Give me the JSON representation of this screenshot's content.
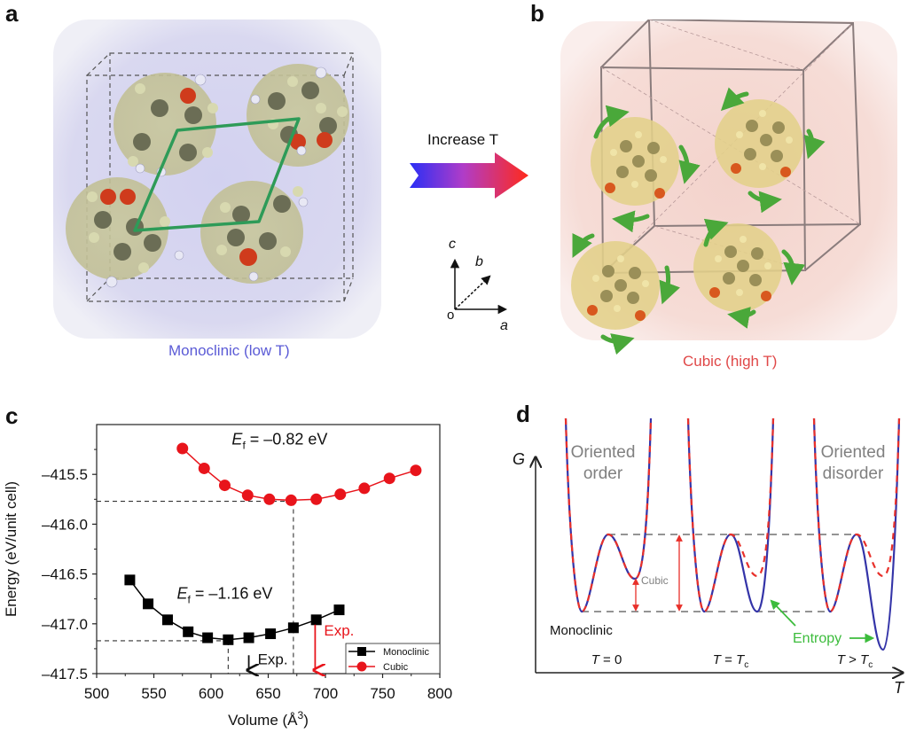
{
  "figure": {
    "panel_labels": {
      "a": "a",
      "b": "b",
      "c": "c",
      "d": "d"
    },
    "panel_a": {
      "caption": "Monoclinic (low T)",
      "caption_color": "#5b5bd6",
      "background_color": "#d9d8f0"
    },
    "panel_b": {
      "caption": "Cubic (high T)",
      "caption_color": "#e04848",
      "background_color": "#f6dcd6"
    },
    "transition_arrow": {
      "label": "Increase T",
      "gradient_start": "#2a2ff5",
      "gradient_end": "#ff2a1a"
    },
    "axes_triad": {
      "origin": "o",
      "a": "a",
      "b": "b",
      "c": "c"
    }
  },
  "chart_data": [
    {
      "panel": "c",
      "type": "line",
      "title": "",
      "xlabel": "Volume (Å",
      "xlabel_sup": "3",
      "xlabel_end": ")",
      "ylabel": "Energy (eV/unit cell)",
      "xlim": [
        500,
        800
      ],
      "ylim": [
        -417.5,
        -415.0
      ],
      "xticks": [
        500,
        550,
        600,
        650,
        700,
        750,
        800
      ],
      "xtick_labels": [
        "500",
        "550",
        "600",
        "650",
        "700",
        "750",
        "800"
      ],
      "yticks": [
        -415.5,
        -416.0,
        -416.5,
        -417.0,
        -417.5
      ],
      "ytick_labels": [
        "–415.5",
        "–416.0",
        "–416.5",
        "–417.0",
        "–417.5"
      ],
      "grid": false,
      "legend_placement": "bottom-right",
      "series": [
        {
          "name": "Monoclinic",
          "color": "#000000",
          "marker": "square",
          "x": [
            529,
            545,
            562,
            580,
            597,
            615,
            633,
            652,
            672,
            692,
            712
          ],
          "y": [
            -416.56,
            -416.8,
            -416.96,
            -417.08,
            -417.14,
            -417.16,
            -417.14,
            -417.1,
            -417.04,
            -416.96,
            -416.86
          ]
        },
        {
          "name": "Cubic",
          "color": "#e8141b",
          "marker": "circle",
          "x": [
            575,
            594,
            612,
            632,
            651,
            670,
            692,
            713,
            734,
            756,
            779
          ],
          "y": [
            -415.24,
            -415.44,
            -415.61,
            -415.71,
            -415.75,
            -415.76,
            -415.75,
            -415.7,
            -415.64,
            -415.54,
            -415.46
          ]
        }
      ],
      "annotations": [
        {
          "text_main": "E",
          "text_sub": "f",
          "text_rest": " = –0.82 eV",
          "x": 660,
          "y": -415.2,
          "color": "#111111"
        },
        {
          "text_main": "E",
          "text_sub": "f",
          "text_rest": " = –1.16 eV",
          "x": 612,
          "y": -416.75,
          "color": "#111111"
        },
        {
          "text": "Exp.",
          "x": 633,
          "y": -417.28,
          "color": "#111111",
          "arrow": true
        },
        {
          "text": "Exp.",
          "x": 691,
          "y": -417.08,
          "color": "#e8141b",
          "arrow": true
        }
      ],
      "reference_lines": {
        "cubic_min": {
          "x": 672,
          "y": -415.77
        },
        "monoclinic_min": {
          "x": 615,
          "y": -417.17
        }
      }
    },
    {
      "panel": "d",
      "type": "line",
      "title": "",
      "xlabel": "T",
      "ylabel": "G",
      "grid": false,
      "top_labels": [
        {
          "line1": "Oriented",
          "line2": "order"
        },
        {
          "line1": "Oriented",
          "line2": "disorder"
        }
      ],
      "state_labels": {
        "monoclinic": "Monoclinic",
        "cubic": "Cubic",
        "entropy": "Entropy"
      },
      "conditions": [
        {
          "main": "T",
          "rel": " = 0",
          "sub": ""
        },
        {
          "main": "T",
          "rel": " = T",
          "sub": "c"
        },
        {
          "main": "T",
          "rel": " > T",
          "sub": "c"
        }
      ],
      "series": [
        {
          "name": "Cubic well depth (relative)",
          "values": [
            0.42,
            0.0,
            -0.45
          ]
        },
        {
          "name": "Monoclinic well depth (relative)",
          "values": [
            0,
            0,
            0
          ]
        }
      ],
      "colors": {
        "solid": "#3434a8",
        "dashed": "#e8302a",
        "entropy": "#3cbc3c",
        "label_gray": "#808080"
      }
    }
  ]
}
